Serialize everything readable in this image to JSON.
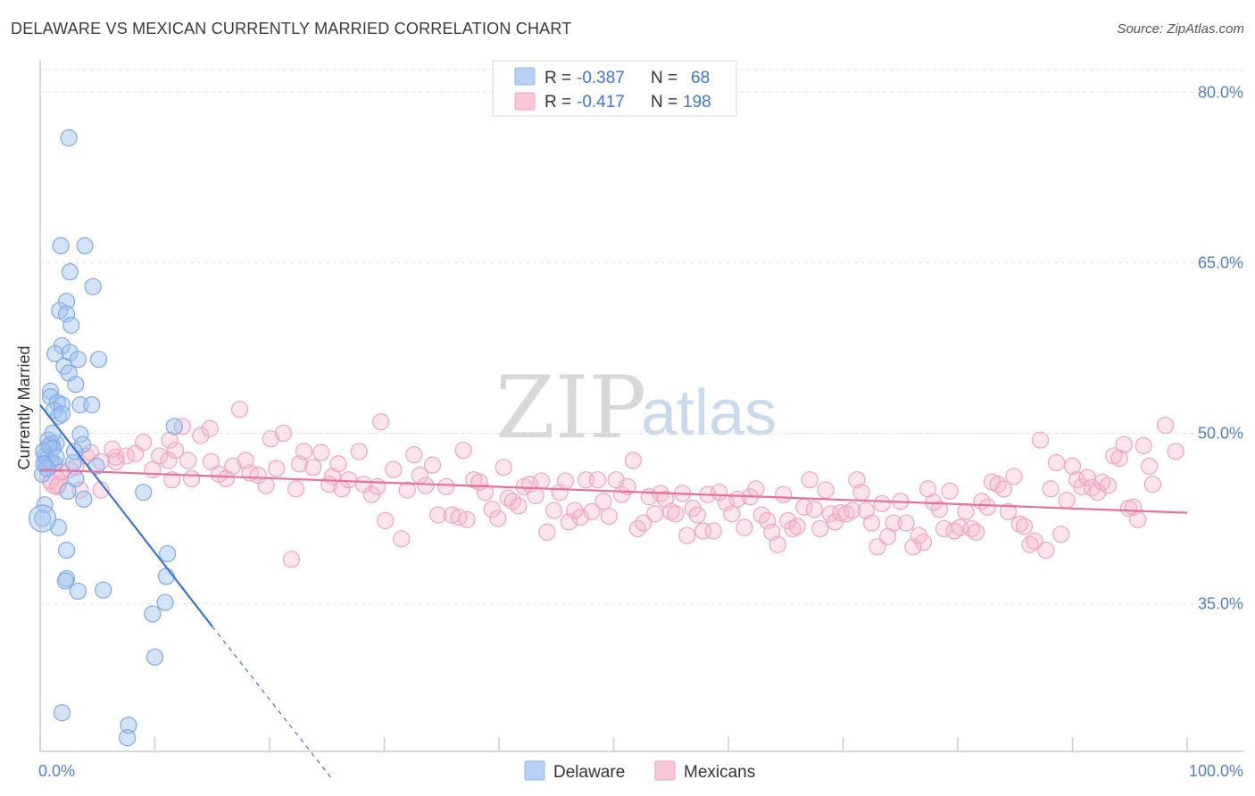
{
  "header": {
    "title": "DELAWARE VS MEXICAN CURRENTLY MARRIED CORRELATION CHART",
    "source": "Source: ZipAtlas.com"
  },
  "legend_top": {
    "rows": [
      {
        "r_label": "R =",
        "r_value": "-0.387",
        "n_label": "N =",
        "n_value": "68",
        "color": "#8fb5ec",
        "fill": "#b9d1f5"
      },
      {
        "r_label": "R =",
        "r_value": "-0.417",
        "n_label": "N =",
        "n_value": "198",
        "color": "#f3a2bd",
        "fill": "#f8c6d6"
      }
    ]
  },
  "legend_bottom": [
    {
      "label": "Delaware",
      "color": "#8fb5ec",
      "fill": "#b9d1f5"
    },
    {
      "label": "Mexicans",
      "color": "#f3a2bd",
      "fill": "#f8c6d6"
    }
  ],
  "watermark": {
    "zip": "ZIP",
    "atlas": "atlas"
  },
  "colors": {
    "blue": "#3c74d6",
    "pink": "#e8719c",
    "grid": "#e3e3e3",
    "axis": "#cccccc"
  },
  "chart_data": {
    "type": "scatter",
    "title": "DELAWARE VS MEXICAN CURRENTLY MARRIED CORRELATION CHART",
    "xlabel": "",
    "ylabel": "Currently Married",
    "xlim": [
      0,
      100
    ],
    "ylim": [
      22,
      82
    ],
    "x_tick_labels": [
      "0.0%",
      "100.0%"
    ],
    "y_ticks": [
      35,
      50,
      65,
      80
    ],
    "y_tick_labels": [
      "35.0%",
      "50.0%",
      "65.0%",
      "80.0%"
    ],
    "grid": true,
    "legend_position": "top-center",
    "series": [
      {
        "name": "Delaware",
        "R": -0.387,
        "N": 68,
        "trend": {
          "x": [
            0,
            15
          ],
          "y": [
            52.5,
            33.0
          ]
        },
        "trend_dashed": {
          "x": [
            15,
            25.5
          ],
          "y": [
            33.0,
            19.5
          ]
        },
        "points": [
          [
            2.5,
            76
          ],
          [
            1.8,
            66.5
          ],
          [
            3.9,
            66.5
          ],
          [
            2.6,
            64.2
          ],
          [
            4.6,
            62.9
          ],
          [
            2.3,
            61.6
          ],
          [
            1.7,
            60.8
          ],
          [
            2.3,
            60.5
          ],
          [
            2.7,
            59.5
          ],
          [
            1.9,
            57.7
          ],
          [
            1.3,
            57.0
          ],
          [
            2.6,
            57.1
          ],
          [
            3.3,
            56.5
          ],
          [
            5.1,
            56.5
          ],
          [
            2.1,
            55.9
          ],
          [
            2.5,
            55.3
          ],
          [
            3.1,
            54.3
          ],
          [
            0.9,
            53.7
          ],
          [
            0.9,
            53.2
          ],
          [
            1.5,
            52.7
          ],
          [
            1.9,
            52.5
          ],
          [
            3.5,
            52.5
          ],
          [
            4.5,
            52.5
          ],
          [
            1.2,
            52.0
          ],
          [
            1.6,
            51.5
          ],
          [
            1.9,
            51.7
          ],
          [
            0.7,
            49.4
          ],
          [
            1.0,
            49.1
          ],
          [
            1.4,
            49.1
          ],
          [
            3.5,
            49.9
          ],
          [
            3.7,
            49.0
          ],
          [
            1.1,
            48.7
          ],
          [
            0.4,
            48.0
          ],
          [
            0.5,
            47.3
          ],
          [
            0.6,
            47.8
          ],
          [
            0.9,
            47.5
          ],
          [
            1.2,
            47.3
          ],
          [
            2.9,
            47.4
          ],
          [
            3.0,
            48.4
          ],
          [
            3.1,
            46.0
          ],
          [
            2.4,
            44.9
          ],
          [
            3.8,
            44.2
          ],
          [
            4.9,
            47.1
          ],
          [
            11.7,
            50.6
          ],
          [
            0.4,
            43.7
          ],
          [
            1.6,
            41.7
          ],
          [
            9.0,
            44.8
          ],
          [
            2.3,
            39.7
          ],
          [
            2.3,
            37.2
          ],
          [
            2.2,
            37.0
          ],
          [
            3.3,
            36.1
          ],
          [
            5.5,
            36.2
          ],
          [
            11.1,
            39.4
          ],
          [
            11.0,
            37.4
          ],
          [
            10.9,
            35.1
          ],
          [
            9.8,
            34.1
          ],
          [
            10.0,
            30.3
          ],
          [
            1.9,
            25.4
          ],
          [
            7.7,
            24.3
          ],
          [
            7.6,
            23.2
          ],
          [
            0.2,
            46.4
          ],
          [
            0.3,
            48.4
          ],
          [
            0.8,
            48.9
          ],
          [
            1.4,
            47.9
          ],
          [
            0.6,
            46.9
          ],
          [
            0.3,
            47.3
          ],
          [
            1.1,
            50.0
          ],
          [
            0.2,
            42.5
          ]
        ]
      },
      {
        "name": "Mexicans",
        "R": -0.417,
        "N": 198,
        "trend": {
          "x": [
            0,
            100
          ],
          "y": [
            46.8,
            43.0
          ]
        },
        "points": [
          [
            1.2,
            47.4
          ],
          [
            1.6,
            45.5
          ],
          [
            2.6,
            46.8
          ],
          [
            3.5,
            45.0
          ],
          [
            5.3,
            45.0
          ],
          [
            3.1,
            47.0
          ],
          [
            4.0,
            48.0
          ],
          [
            5.3,
            47.5
          ],
          [
            6.6,
            47.9
          ],
          [
            6.3,
            48.6
          ],
          [
            7.5,
            48.0
          ],
          [
            8.3,
            48.2
          ],
          [
            9.0,
            49.2
          ],
          [
            9.8,
            46.8
          ],
          [
            10.4,
            48.0
          ],
          [
            11.2,
            47.6
          ],
          [
            11.3,
            49.4
          ],
          [
            11.8,
            48.5
          ],
          [
            12.4,
            50.6
          ],
          [
            12.9,
            47.6
          ],
          [
            13.2,
            46.0
          ],
          [
            14.0,
            49.8
          ],
          [
            14.8,
            50.4
          ],
          [
            14.9,
            47.5
          ],
          [
            15.6,
            46.4
          ],
          [
            16.2,
            46.0
          ],
          [
            16.8,
            47.1
          ],
          [
            17.4,
            52.1
          ],
          [
            17.9,
            47.6
          ],
          [
            18.3,
            46.5
          ],
          [
            19.0,
            46.3
          ],
          [
            19.7,
            45.4
          ],
          [
            20.6,
            46.9
          ],
          [
            21.2,
            50.0
          ],
          [
            21.9,
            38.9
          ],
          [
            22.3,
            45.1
          ],
          [
            22.6,
            47.3
          ],
          [
            23.0,
            48.4
          ],
          [
            23.8,
            47.0
          ],
          [
            24.5,
            48.3
          ],
          [
            25.2,
            45.5
          ],
          [
            25.5,
            46.2
          ],
          [
            26.0,
            47.3
          ],
          [
            26.3,
            45.1
          ],
          [
            26.9,
            45.9
          ],
          [
            27.8,
            48.4
          ],
          [
            28.2,
            45.5
          ],
          [
            28.9,
            44.6
          ],
          [
            29.4,
            45.3
          ],
          [
            29.7,
            51.0
          ],
          [
            30.1,
            42.3
          ],
          [
            30.8,
            46.8
          ],
          [
            31.5,
            40.7
          ],
          [
            32.0,
            45.0
          ],
          [
            32.6,
            48.1
          ],
          [
            33.1,
            46.3
          ],
          [
            33.6,
            45.4
          ],
          [
            34.2,
            47.2
          ],
          [
            34.7,
            42.8
          ],
          [
            35.4,
            45.3
          ],
          [
            35.9,
            42.8
          ],
          [
            36.5,
            42.6
          ],
          [
            36.9,
            48.5
          ],
          [
            37.2,
            42.4
          ],
          [
            37.8,
            45.9
          ],
          [
            38.3,
            45.7
          ],
          [
            38.8,
            44.8
          ],
          [
            39.4,
            43.3
          ],
          [
            39.9,
            42.5
          ],
          [
            40.4,
            47.0
          ],
          [
            40.8,
            44.3
          ],
          [
            41.2,
            44.0
          ],
          [
            41.7,
            43.6
          ],
          [
            42.2,
            45.3
          ],
          [
            42.7,
            45.5
          ],
          [
            43.2,
            44.5
          ],
          [
            43.7,
            45.8
          ],
          [
            44.2,
            41.3
          ],
          [
            44.8,
            43.2
          ],
          [
            45.3,
            44.8
          ],
          [
            45.8,
            45.8
          ],
          [
            46.1,
            42.2
          ],
          [
            46.6,
            43.2
          ],
          [
            47.1,
            42.6
          ],
          [
            47.6,
            45.9
          ],
          [
            48.1,
            43.1
          ],
          [
            48.6,
            45.9
          ],
          [
            49.1,
            44.0
          ],
          [
            49.6,
            42.7
          ],
          [
            50.2,
            45.9
          ],
          [
            50.7,
            44.6
          ],
          [
            51.2,
            45.3
          ],
          [
            51.7,
            47.6
          ],
          [
            52.1,
            41.6
          ],
          [
            52.6,
            42.1
          ],
          [
            53.1,
            44.4
          ],
          [
            53.6,
            42.9
          ],
          [
            54.1,
            44.7
          ],
          [
            54.5,
            44.2
          ],
          [
            55.0,
            43.1
          ],
          [
            55.4,
            42.9
          ],
          [
            56.0,
            44.7
          ],
          [
            56.4,
            41.0
          ],
          [
            56.9,
            43.4
          ],
          [
            57.3,
            42.8
          ],
          [
            57.8,
            41.4
          ],
          [
            58.2,
            44.6
          ],
          [
            58.7,
            41.4
          ],
          [
            59.2,
            44.8
          ],
          [
            59.8,
            43.9
          ],
          [
            60.3,
            42.9
          ],
          [
            60.8,
            44.2
          ],
          [
            61.4,
            41.7
          ],
          [
            61.9,
            44.4
          ],
          [
            62.4,
            45.1
          ],
          [
            62.9,
            42.8
          ],
          [
            63.4,
            42.3
          ],
          [
            63.8,
            41.3
          ],
          [
            64.3,
            40.2
          ],
          [
            64.8,
            44.6
          ],
          [
            65.2,
            42.3
          ],
          [
            65.6,
            41.6
          ],
          [
            66.0,
            41.8
          ],
          [
            66.6,
            43.5
          ],
          [
            67.1,
            45.9
          ],
          [
            67.5,
            43.3
          ],
          [
            68.0,
            41.6
          ],
          [
            68.5,
            45.0
          ],
          [
            68.9,
            42.9
          ],
          [
            69.3,
            42.2
          ],
          [
            69.8,
            43.0
          ],
          [
            70.3,
            42.9
          ],
          [
            70.8,
            43.2
          ],
          [
            71.2,
            45.9
          ],
          [
            71.6,
            44.8
          ],
          [
            72.0,
            43.2
          ],
          [
            72.5,
            42.1
          ],
          [
            73.0,
            40.0
          ],
          [
            73.4,
            43.8
          ],
          [
            73.9,
            40.9
          ],
          [
            74.4,
            42.1
          ],
          [
            75.0,
            44.0
          ],
          [
            75.5,
            42.1
          ],
          [
            76.1,
            40.0
          ],
          [
            76.6,
            41.0
          ],
          [
            77.0,
            40.4
          ],
          [
            77.4,
            45.1
          ],
          [
            77.9,
            43.9
          ],
          [
            78.4,
            43.3
          ],
          [
            78.8,
            41.6
          ],
          [
            79.3,
            44.9
          ],
          [
            79.7,
            41.4
          ],
          [
            80.2,
            41.7
          ],
          [
            80.7,
            43.1
          ],
          [
            81.2,
            41.6
          ],
          [
            81.6,
            41.3
          ],
          [
            82.1,
            44.0
          ],
          [
            82.6,
            43.5
          ],
          [
            83.0,
            45.7
          ],
          [
            83.5,
            45.5
          ],
          [
            84.0,
            45.1
          ],
          [
            84.4,
            43.1
          ],
          [
            84.9,
            46.2
          ],
          [
            85.4,
            42.0
          ],
          [
            85.8,
            41.8
          ],
          [
            86.3,
            40.2
          ],
          [
            86.7,
            40.5
          ],
          [
            87.2,
            49.4
          ],
          [
            87.7,
            39.7
          ],
          [
            88.1,
            45.1
          ],
          [
            88.6,
            47.4
          ],
          [
            89.0,
            41.1
          ],
          [
            89.5,
            44.1
          ],
          [
            90.0,
            47.1
          ],
          [
            90.4,
            45.9
          ],
          [
            90.8,
            45.3
          ],
          [
            91.3,
            46.1
          ],
          [
            91.7,
            45.2
          ],
          [
            92.2,
            44.8
          ],
          [
            92.6,
            45.7
          ],
          [
            93.1,
            45.4
          ],
          [
            93.6,
            48.0
          ],
          [
            94.1,
            47.8
          ],
          [
            94.5,
            49.0
          ],
          [
            94.9,
            43.4
          ],
          [
            95.3,
            43.5
          ],
          [
            95.7,
            42.4
          ],
          [
            96.2,
            48.9
          ],
          [
            96.7,
            47.1
          ],
          [
            97.0,
            45.5
          ],
          [
            98.1,
            50.7
          ],
          [
            99.0,
            48.4
          ],
          [
            1.5,
            45.3
          ],
          [
            4.4,
            48.3
          ],
          [
            6.6,
            47.5
          ],
          [
            11.5,
            45.9
          ],
          [
            20.1,
            49.5
          ],
          [
            0.9,
            45.8
          ],
          [
            1.8,
            46.6
          ]
        ]
      }
    ]
  }
}
